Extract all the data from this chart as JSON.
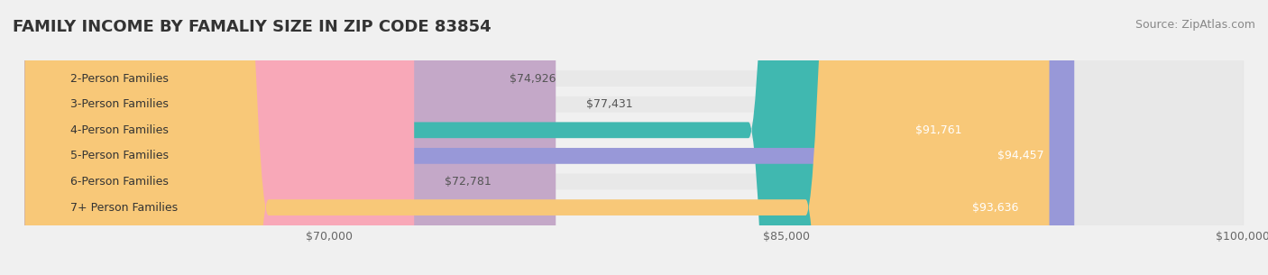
{
  "title": "FAMILY INCOME BY FAMALIY SIZE IN ZIP CODE 83854",
  "source": "Source: ZipAtlas.com",
  "categories": [
    "2-Person Families",
    "3-Person Families",
    "4-Person Families",
    "5-Person Families",
    "6-Person Families",
    "7+ Person Families"
  ],
  "values": [
    74926,
    77431,
    91761,
    94457,
    72781,
    93636
  ],
  "bar_colors": [
    "#a8c8e8",
    "#c4a8c8",
    "#40b8b0",
    "#9898d8",
    "#f8a8b8",
    "#f8c878"
  ],
  "label_colors": [
    "#555555",
    "#555555",
    "#ffffff",
    "#ffffff",
    "#555555",
    "#ffffff"
  ],
  "value_labels": [
    "$74,926",
    "$77,431",
    "$91,761",
    "$94,457",
    "$72,781",
    "$93,636"
  ],
  "xmin": 60000,
  "xmax": 100000,
  "xticks": [
    70000,
    85000,
    100000
  ],
  "xtick_labels": [
    "$70,000",
    "$85,000",
    "$100,000"
  ],
  "background_color": "#f0f0f0",
  "bar_bg_color": "#e8e8e8",
  "bar_height": 0.62,
  "title_fontsize": 13,
  "source_fontsize": 9,
  "label_fontsize": 9,
  "value_fontsize": 9
}
